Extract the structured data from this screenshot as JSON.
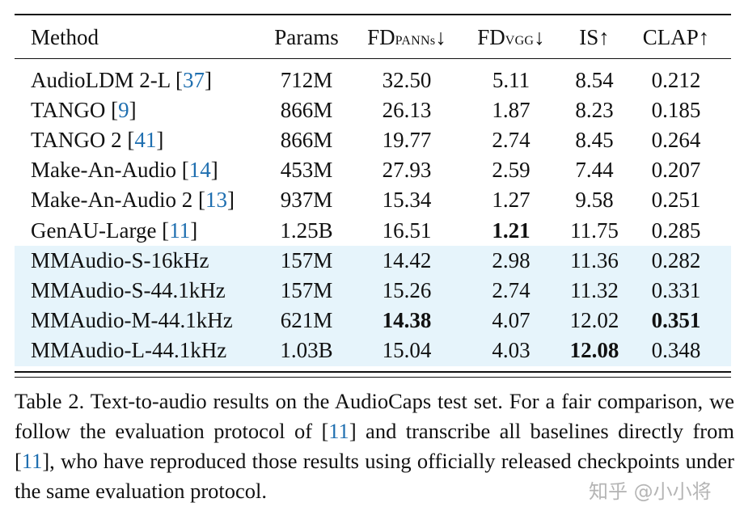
{
  "table": {
    "headers": {
      "method": "Method",
      "params": "Params",
      "fd_panns": {
        "main": "FD",
        "sub": "PANNs",
        "arrow": "↓"
      },
      "fd_vgg": {
        "main": "FD",
        "sub": "VGG",
        "arrow": "↓"
      },
      "is": "IS↑",
      "clap": "CLAP↑"
    },
    "rows": [
      {
        "method": "AudioLDM 2-L [",
        "ref": "37",
        "close": "]",
        "params": "712M",
        "fd_panns": "32.50",
        "fd_vgg": "5.11",
        "is": "8.54",
        "clap": "0.212",
        "highlight": false
      },
      {
        "method": "TANGO [",
        "ref": "9",
        "close": "]",
        "params": "866M",
        "fd_panns": "26.13",
        "fd_vgg": "1.87",
        "is": "8.23",
        "clap": "0.185",
        "highlight": false
      },
      {
        "method": "TANGO 2 [",
        "ref": "41",
        "close": "]",
        "params": "866M",
        "fd_panns": "19.77",
        "fd_vgg": "2.74",
        "is": "8.45",
        "clap": "0.264",
        "highlight": false
      },
      {
        "method": "Make-An-Audio [",
        "ref": "14",
        "close": "]",
        "params": "453M",
        "fd_panns": "27.93",
        "fd_vgg": "2.59",
        "is": "7.44",
        "clap": "0.207",
        "highlight": false
      },
      {
        "method": "Make-An-Audio 2 [",
        "ref": "13",
        "close": "]",
        "params": "937M",
        "fd_panns": "15.34",
        "fd_vgg": "1.27",
        "is": "9.58",
        "clap": "0.251",
        "highlight": false
      },
      {
        "method": "GenAU-Large [",
        "ref": "11",
        "close": "]",
        "params": "1.25B",
        "fd_panns": "16.51",
        "fd_vgg": "1.21",
        "is": "11.75",
        "clap": "0.285",
        "highlight": false,
        "bold": [
          "fd_vgg"
        ]
      },
      {
        "method": "MMAudio-S-16kHz",
        "ref": "",
        "close": "",
        "params": "157M",
        "fd_panns": "14.42",
        "fd_vgg": "2.98",
        "is": "11.36",
        "clap": "0.282",
        "highlight": true
      },
      {
        "method": "MMAudio-S-44.1kHz",
        "ref": "",
        "close": "",
        "params": "157M",
        "fd_panns": "15.26",
        "fd_vgg": "2.74",
        "is": "11.32",
        "clap": "0.331",
        "highlight": true
      },
      {
        "method": "MMAudio-M-44.1kHz",
        "ref": "",
        "close": "",
        "params": "621M",
        "fd_panns": "14.38",
        "fd_vgg": "4.07",
        "is": "12.02",
        "clap": "0.351",
        "highlight": true,
        "bold": [
          "fd_panns",
          "clap"
        ]
      },
      {
        "method": "MMAudio-L-44.1kHz",
        "ref": "",
        "close": "",
        "params": "1.03B",
        "fd_panns": "15.04",
        "fd_vgg": "4.03",
        "is": "12.08",
        "clap": "0.348",
        "highlight": true,
        "bold": [
          "is"
        ]
      }
    ]
  },
  "caption": {
    "t1": "Table 2. Text-to-audio results on the AudioCaps test set. For a fair comparison, we follow the evaluation protocol of [",
    "r1": "11",
    "t2": "] and transcribe all baselines directly from [",
    "r2": "11",
    "t3": "], who have reproduced those results using officially released checkpoints under the same evaluation protocol."
  },
  "watermark": "知乎 @小小将",
  "colors": {
    "ref": "#1f6fb0",
    "highlight": "#e6f4fb"
  }
}
